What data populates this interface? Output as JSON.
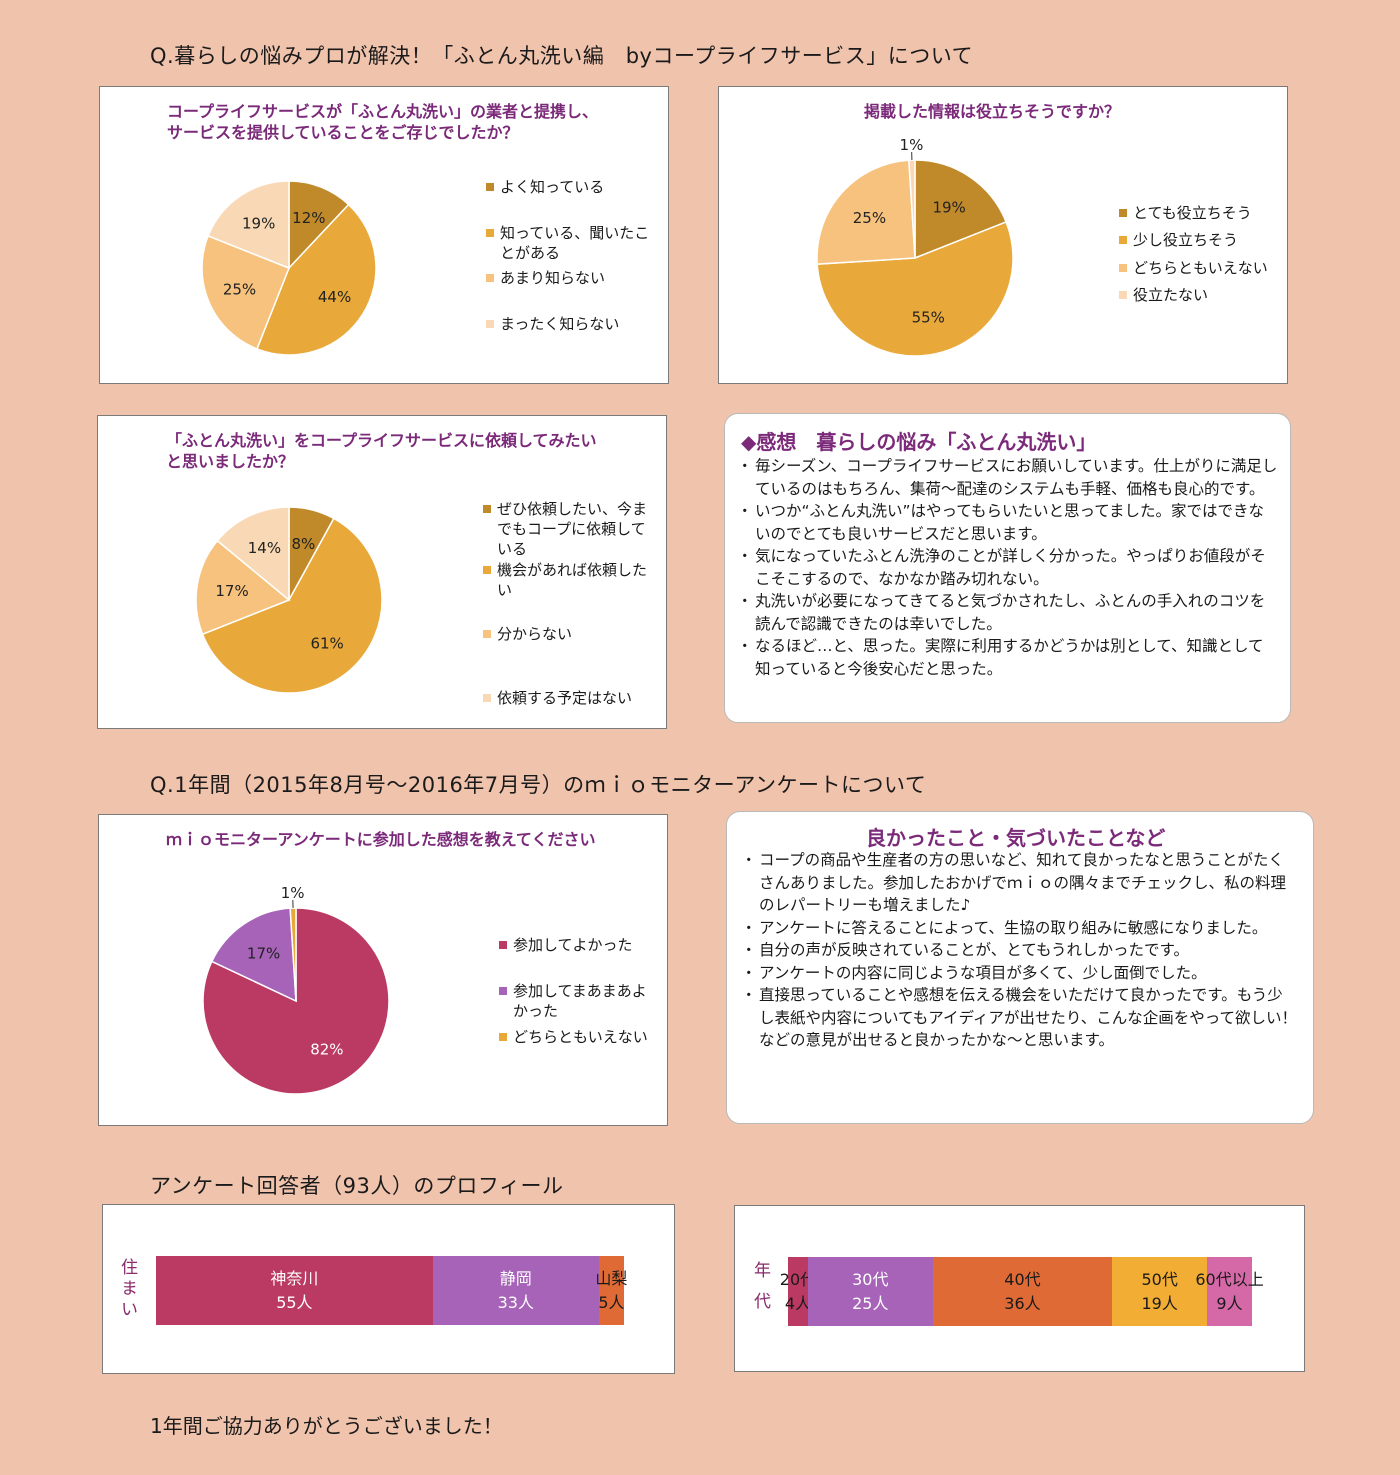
{
  "headings": {
    "q1": "Q.暮らしの悩みプロが解決！「ふとん丸洗い編　byコープライフサービス」について",
    "q2": "Q.1年間（2015年8月号～2016年7月号）のｍｉｏモニターアンケートについて",
    "profile": "アンケート回答者（93人）のプロフィール",
    "thanks": "1年間ご協力ありがとうございました！"
  },
  "chart_data": [
    {
      "type": "pie",
      "title": "コープライフサービスが「ふとん丸洗い」の業者と提携し、サービスを提供していることをご存じでしたか？",
      "categories": [
        "よく知っている",
        "知っている、聞いたことがある",
        "あまり知らない",
        "まったく知らない"
      ],
      "values": [
        12,
        44,
        25,
        19
      ],
      "labels": [
        "12%",
        "44%",
        "25%",
        "19%"
      ],
      "colors": [
        "#c08a2a",
        "#e8a93a",
        "#f6c27d",
        "#f9d9b5"
      ]
    },
    {
      "type": "pie",
      "title": "掲載した情報は役立ちそうですか？",
      "categories": [
        "とても役立ちそう",
        "少し役立ちそう",
        "どちらともいえない",
        "役立たない"
      ],
      "values": [
        19,
        55,
        25,
        1
      ],
      "labels": [
        "19%",
        "55%",
        "25%",
        "1%"
      ],
      "colors": [
        "#c08a2a",
        "#e8a93a",
        "#f6c27d",
        "#f9d9b5"
      ]
    },
    {
      "type": "pie",
      "title": "「ふとん丸洗い」をコープライフサービスに依頼してみたいと思いましたか？",
      "categories": [
        "ぜひ依頼したい、今までもコープに依頼している",
        "機会があれば依頼したい",
        "分からない",
        "依頼する予定はない"
      ],
      "values": [
        8,
        61,
        17,
        14
      ],
      "labels": [
        "8%",
        "61%",
        "17%",
        "14%"
      ],
      "colors": [
        "#c08a2a",
        "#e8a93a",
        "#f6c27d",
        "#f9d9b5"
      ]
    },
    {
      "type": "pie",
      "title": "ｍｉｏモニターアンケートに参加した感想を教えてください",
      "categories": [
        "参加してよかった",
        "参加してまあまあよかった",
        "どちらともいえない"
      ],
      "values": [
        82,
        17,
        1
      ],
      "labels": [
        "82%",
        "17%",
        "1%"
      ],
      "colors": [
        "#bb3a64",
        "#a663b8",
        "#e8a93a"
      ]
    },
    {
      "type": "bar",
      "orientation": "stacked-horizontal",
      "axis_label": "住まい",
      "categories": [
        "神奈川",
        "静岡",
        "山梨"
      ],
      "values": [
        55,
        33,
        5
      ],
      "value_labels": [
        "55人",
        "33人",
        "5人"
      ],
      "colors": [
        "#bb3a64",
        "#a663b8",
        "#e06a35"
      ]
    },
    {
      "type": "bar",
      "orientation": "stacked-horizontal",
      "axis_label": "年代",
      "categories": [
        "20代",
        "30代",
        "40代",
        "50代",
        "60代以上"
      ],
      "values": [
        4,
        25,
        36,
        19,
        9
      ],
      "value_labels": [
        "4人",
        "25人",
        "36人",
        "19人",
        "9人"
      ],
      "colors": [
        "#bb3a64",
        "#a663b8",
        "#e06a35",
        "#f2ad35",
        "#d568a6"
      ]
    }
  ],
  "comments1": {
    "title": "◆感想　暮らしの悩み「ふとん丸洗い」",
    "items": [
      "毎シーズン、コープライフサービスにお願いしています。仕上がりに満足しているのはもちろん、集荷～配達のシステムも手軽、価格も良心的です。",
      "いつか“ふとん丸洗い”はやってもらいたいと思ってました。家ではできないのでとても良いサービスだと思います。",
      "気になっていたふとん洗浄のことが詳しく分かった。やっぱりお値段がそこそこするので、なかなか踏み切れない。",
      "丸洗いが必要になってきてると気づかされたし、ふとんの手入れのコツを読んで認識できたのは幸いでした。",
      "なるほど…と、思った。実際に利用するかどうかは別として、知識として知っていると今後安心だと思った。"
    ]
  },
  "comments2": {
    "title": "良かったこと・気づいたことなど",
    "items": [
      "コープの商品や生産者の方の思いなど、知れて良かったなと思うことがたくさんありました。参加したおかげでｍｉｏの隅々までチェックし、私の料理のレパートリーも増えました♪",
      "アンケートに答えることによって、生協の取り組みに敏感になりました。",
      "自分の声が反映されていることが、とてもうれしかったです。",
      "アンケートの内容に同じような項目が多くて、少し面倒でした。",
      "直接思っていることや感想を伝える機会をいただけて良かったです。もう少し表紙や内容についてもアイディアが出せたり、こんな企画をやって欲しい！などの意見が出せると良かったかな～と思います。"
    ]
  }
}
